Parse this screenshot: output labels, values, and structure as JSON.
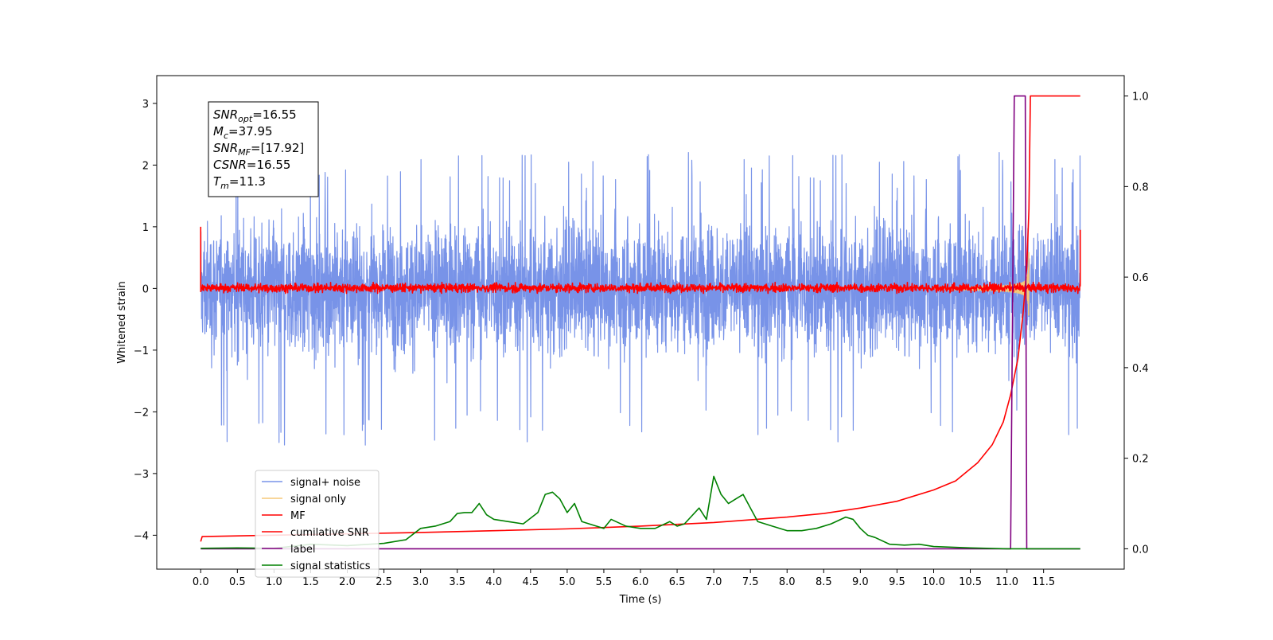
{
  "chart_data": {
    "type": "line",
    "xlabel": "Time (s)",
    "ylabel": "Whitened strain",
    "ylabel_right": "",
    "xlim": [
      -0.6,
      12.6
    ],
    "ylim": [
      -4.55,
      3.45
    ],
    "ylim_right": [
      -0.045,
      1.045
    ],
    "x_ticks": [
      "0.0",
      "0.5",
      "1.0",
      "1.5",
      "2.0",
      "2.5",
      "3.0",
      "3.5",
      "4.0",
      "4.5",
      "5.0",
      "5.5",
      "6.0",
      "6.5",
      "7.0",
      "7.5",
      "8.0",
      "8.5",
      "9.0",
      "9.5",
      "10.0",
      "10.5",
      "11.0",
      "11.5"
    ],
    "y_ticks": [
      "3",
      "2",
      "1",
      "0",
      "−1",
      "−2",
      "−3",
      "−4"
    ],
    "y_ticks_right": [
      "1.0",
      "0.8",
      "0.6",
      "0.4",
      "0.2",
      "0.0"
    ],
    "grid": false,
    "legend_position": "lower-left",
    "info_box": {
      "lines": [
        {
          "base": "SNR",
          "sub": "opt",
          "value": "=16.55"
        },
        {
          "base": "M",
          "sub": "c",
          "value": "=37.95"
        },
        {
          "base": "SNR",
          "sub": "MF",
          "value": "=[17.92]"
        },
        {
          "base": "CSNR",
          "sub": "",
          "value": "=16.55"
        },
        {
          "base": "T",
          "sub": "m",
          "value": "=11.3"
        }
      ]
    },
    "series": [
      {
        "name": "signal+ noise",
        "color": "#7893e8",
        "axis": "left",
        "kind": "noise",
        "x_range": [
          0.0,
          12.0
        ],
        "envelope": [
          -1.3,
          1.3
        ],
        "peak_range": [
          -2.55,
          2.25
        ]
      },
      {
        "name": "signal only",
        "color": "#f5c878",
        "axis": "left",
        "kind": "chirp",
        "x_range": [
          10.0,
          11.3
        ],
        "peak_amplitude": 0.6
      },
      {
        "name": "MF",
        "color": "#ff0000",
        "axis": "left",
        "kind": "noise",
        "x_range": [
          0.0,
          12.0
        ],
        "envelope": [
          -0.08,
          0.1
        ],
        "edge_spikes": [
          1.0,
          0.95
        ]
      },
      {
        "name": "cumilative SNR",
        "color": "#ff0000",
        "axis": "right",
        "x": [
          0.0,
          0.02,
          1.0,
          2.0,
          3.0,
          4.0,
          5.0,
          6.0,
          7.0,
          8.0,
          8.5,
          9.0,
          9.5,
          10.0,
          10.3,
          10.6,
          10.8,
          10.95,
          11.05,
          11.15,
          11.22,
          11.27,
          11.3,
          11.32,
          11.4,
          12.0
        ],
        "values": [
          0.016,
          0.027,
          0.03,
          0.033,
          0.036,
          0.04,
          0.044,
          0.05,
          0.058,
          0.07,
          0.078,
          0.09,
          0.105,
          0.13,
          0.15,
          0.19,
          0.23,
          0.28,
          0.34,
          0.42,
          0.52,
          0.62,
          0.75,
          1.0,
          1.0,
          1.0
        ]
      },
      {
        "name": "label",
        "color": "#800080",
        "axis": "right",
        "x": [
          0.0,
          11.05,
          11.1,
          11.25,
          11.27,
          11.3,
          12.0
        ],
        "values": [
          0.0,
          0.0,
          1.0,
          1.0,
          0.0,
          0.0,
          0.0
        ]
      },
      {
        "name": "signal statistics",
        "color": "#008000",
        "axis": "right",
        "x": [
          0.0,
          0.5,
          1.0,
          1.5,
          2.0,
          2.5,
          2.8,
          3.0,
          3.2,
          3.4,
          3.5,
          3.6,
          3.7,
          3.8,
          3.9,
          4.0,
          4.2,
          4.4,
          4.6,
          4.7,
          4.8,
          4.9,
          5.0,
          5.1,
          5.2,
          5.3,
          5.4,
          5.5,
          5.6,
          5.8,
          6.0,
          6.2,
          6.4,
          6.5,
          6.6,
          6.8,
          6.9,
          7.0,
          7.1,
          7.2,
          7.3,
          7.4,
          7.5,
          7.6,
          7.7,
          7.8,
          8.0,
          8.2,
          8.4,
          8.6,
          8.8,
          8.9,
          9.0,
          9.1,
          9.2,
          9.4,
          9.6,
          9.8,
          10.0,
          10.5,
          11.0,
          12.0
        ],
        "values": [
          0.001,
          0.002,
          0.001,
          0.01,
          0.007,
          0.012,
          0.02,
          0.045,
          0.05,
          0.06,
          0.078,
          0.08,
          0.08,
          0.1,
          0.075,
          0.065,
          0.06,
          0.055,
          0.08,
          0.12,
          0.125,
          0.11,
          0.08,
          0.1,
          0.06,
          0.055,
          0.05,
          0.045,
          0.065,
          0.05,
          0.045,
          0.045,
          0.06,
          0.05,
          0.055,
          0.09,
          0.065,
          0.16,
          0.12,
          0.1,
          0.11,
          0.12,
          0.09,
          0.06,
          0.055,
          0.05,
          0.04,
          0.04,
          0.045,
          0.055,
          0.07,
          0.065,
          0.045,
          0.03,
          0.025,
          0.01,
          0.008,
          0.01,
          0.005,
          0.002,
          0.0,
          0.0
        ]
      }
    ]
  }
}
